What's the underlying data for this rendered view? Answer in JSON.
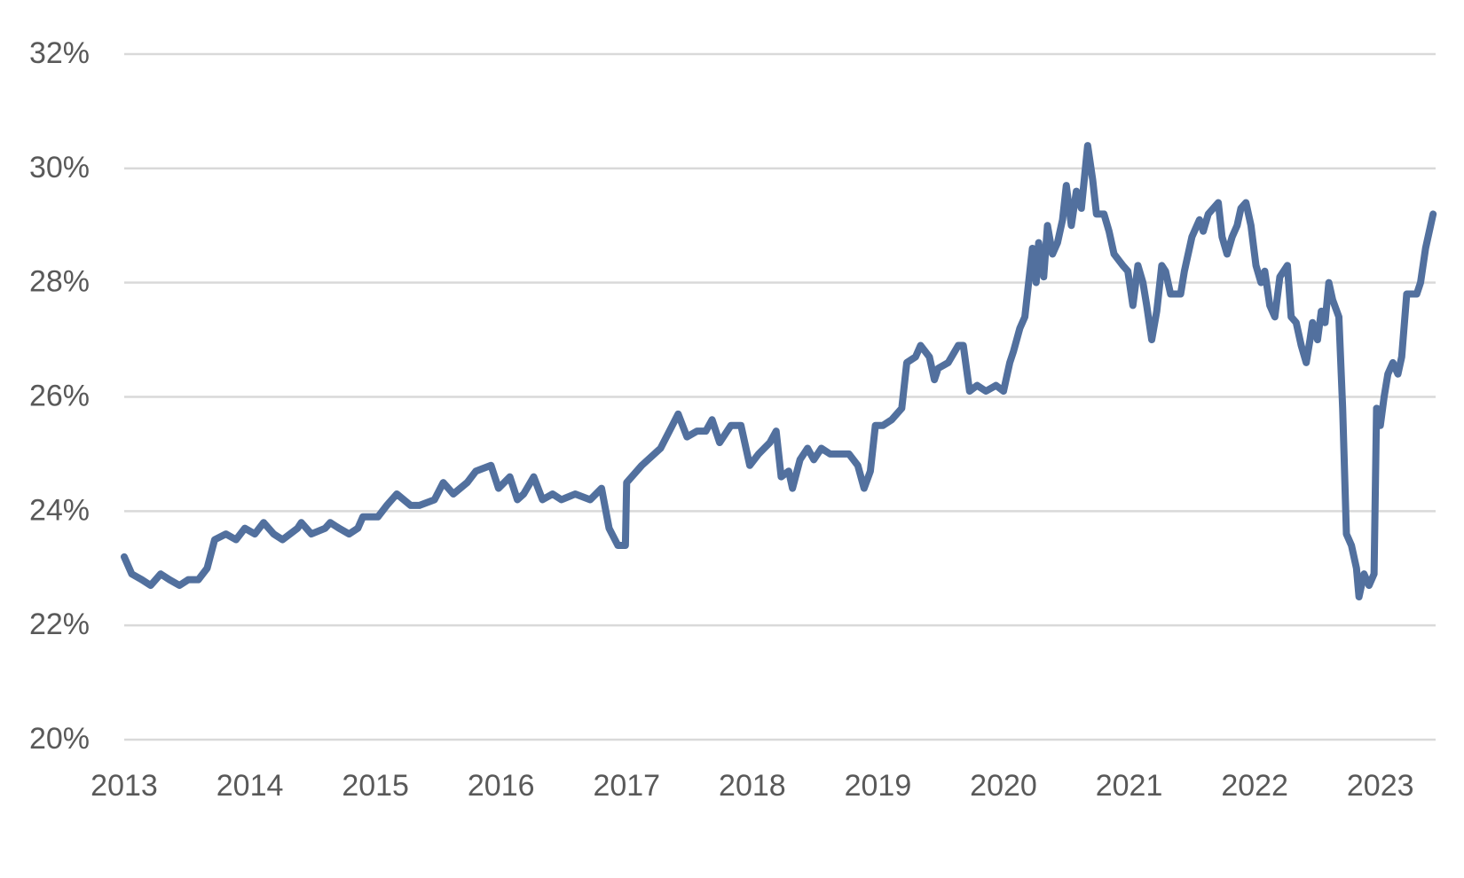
{
  "chart_data": {
    "type": "line",
    "x": [
      2013.0,
      2013.06,
      2013.14,
      2013.21,
      2013.29,
      2013.36,
      2013.44,
      2013.51,
      2013.59,
      2013.66,
      2013.72,
      2013.81,
      2013.89,
      2013.96,
      2014.04,
      2014.11,
      2014.19,
      2014.26,
      2014.38,
      2014.41,
      2014.49,
      2014.6,
      2014.64,
      2014.71,
      2014.79,
      2014.86,
      2014.9,
      2015.02,
      2015.09,
      2015.17,
      2015.28,
      2015.35,
      2015.47,
      2015.54,
      2015.62,
      2015.73,
      2015.8,
      2015.92,
      2015.98,
      2016.07,
      2016.13,
      2016.18,
      2016.26,
      2016.33,
      2016.41,
      2016.48,
      2016.59,
      2016.71,
      2016.8,
      2016.86,
      2016.93,
      2016.99,
      2017.0,
      2017.12,
      2017.27,
      2017.34,
      2017.41,
      2017.48,
      2017.56,
      2017.63,
      2017.68,
      2017.74,
      2017.83,
      2017.91,
      2017.98,
      2018.05,
      2018.14,
      2018.19,
      2018.23,
      2018.29,
      2018.32,
      2018.38,
      2018.44,
      2018.49,
      2018.55,
      2018.62,
      2018.77,
      2018.84,
      2018.89,
      2018.94,
      2018.98,
      2019.04,
      2019.11,
      2019.19,
      2019.23,
      2019.3,
      2019.34,
      2019.41,
      2019.45,
      2019.48,
      2019.56,
      2019.64,
      2019.68,
      2019.73,
      2019.79,
      2019.86,
      2019.94,
      2020.0,
      2020.05,
      2020.08,
      2020.13,
      2020.17,
      2020.2,
      2020.23,
      2020.26,
      2020.28,
      2020.32,
      2020.35,
      2020.39,
      2020.43,
      2020.47,
      2020.5,
      2020.54,
      2020.58,
      2020.62,
      2020.67,
      2020.71,
      2020.74,
      2020.8,
      2020.84,
      2020.88,
      2020.95,
      2020.99,
      2021.03,
      2021.07,
      2021.11,
      2021.14,
      2021.18,
      2021.22,
      2021.26,
      2021.29,
      2021.33,
      2021.41,
      2021.44,
      2021.5,
      2021.56,
      2021.59,
      2021.63,
      2021.71,
      2021.74,
      2021.78,
      2021.82,
      2021.86,
      2021.89,
      2021.93,
      2021.97,
      2022.01,
      2022.05,
      2022.08,
      2022.12,
      2022.16,
      2022.2,
      2022.26,
      2022.29,
      2022.33,
      2022.37,
      2022.41,
      2022.44,
      2022.46,
      2022.5,
      2022.53,
      2022.56,
      2022.59,
      2022.62,
      2022.67,
      2022.7,
      2022.73,
      2022.77,
      2022.81,
      2022.83,
      2022.87,
      2022.91,
      2022.95,
      2022.97,
      2023.0,
      2023.03,
      2023.06,
      2023.1,
      2023.14,
      2023.17,
      2023.21,
      2023.25,
      2023.29,
      2023.32,
      2023.36,
      2023.4,
      2023.42
    ],
    "values": [
      23.2,
      22.9,
      22.8,
      22.7,
      22.9,
      22.8,
      22.7,
      22.8,
      22.8,
      23.0,
      23.5,
      23.6,
      23.5,
      23.7,
      23.6,
      23.8,
      23.6,
      23.5,
      23.7,
      23.8,
      23.6,
      23.7,
      23.8,
      23.7,
      23.6,
      23.7,
      23.9,
      23.9,
      24.1,
      24.3,
      24.1,
      24.1,
      24.2,
      24.5,
      24.3,
      24.5,
      24.7,
      24.8,
      24.4,
      24.6,
      24.2,
      24.3,
      24.6,
      24.2,
      24.3,
      24.2,
      24.3,
      24.2,
      24.4,
      23.7,
      23.4,
      23.4,
      24.5,
      24.8,
      25.1,
      25.4,
      25.7,
      25.3,
      25.4,
      25.4,
      25.6,
      25.2,
      25.5,
      25.5,
      24.8,
      25.0,
      25.2,
      25.4,
      24.6,
      24.7,
      24.4,
      24.9,
      25.1,
      24.9,
      25.1,
      25.0,
      25.0,
      24.8,
      24.4,
      24.7,
      25.5,
      25.5,
      25.6,
      25.8,
      26.6,
      26.7,
      26.9,
      26.7,
      26.3,
      26.5,
      26.6,
      26.9,
      26.9,
      26.1,
      26.2,
      26.1,
      26.2,
      26.1,
      26.6,
      26.8,
      27.2,
      27.4,
      28.0,
      28.6,
      28.0,
      28.7,
      28.1,
      29.0,
      28.5,
      28.7,
      29.1,
      29.7,
      29.0,
      29.6,
      29.3,
      30.4,
      29.8,
      29.2,
      29.2,
      28.9,
      28.5,
      28.3,
      28.2,
      27.6,
      28.3,
      28.0,
      27.6,
      27.0,
      27.5,
      28.3,
      28.2,
      27.8,
      27.8,
      28.2,
      28.8,
      29.1,
      28.9,
      29.2,
      29.4,
      28.8,
      28.5,
      28.8,
      29.0,
      29.3,
      29.4,
      29.0,
      28.3,
      28.0,
      28.2,
      27.6,
      27.4,
      28.1,
      28.3,
      27.4,
      27.3,
      26.9,
      26.6,
      27.0,
      27.3,
      27.0,
      27.5,
      27.3,
      28.0,
      27.7,
      27.4,
      25.8,
      23.6,
      23.4,
      23.0,
      22.5,
      22.9,
      22.7,
      22.9,
      25.8,
      25.5,
      26.0,
      26.4,
      26.6,
      26.4,
      26.7,
      27.8,
      27.8,
      27.8,
      28.0,
      28.6,
      29.0,
      29.2
    ],
    "color": "#52709e",
    "xlim": [
      2013,
      2023.44
    ],
    "xticks": [
      2013,
      2014,
      2015,
      2016,
      2017,
      2018,
      2019,
      2020,
      2021,
      2022,
      2023
    ],
    "ylim": [
      20,
      32
    ],
    "yticks": [
      {
        "value": 20,
        "label": "20%"
      },
      {
        "value": 22,
        "label": "22%"
      },
      {
        "value": 24,
        "label": "24%"
      },
      {
        "value": 26,
        "label": "26%"
      },
      {
        "value": 28,
        "label": "28%"
      },
      {
        "value": 30,
        "label": "30%"
      },
      {
        "value": 32,
        "label": "32%"
      }
    ],
    "grid": true
  }
}
